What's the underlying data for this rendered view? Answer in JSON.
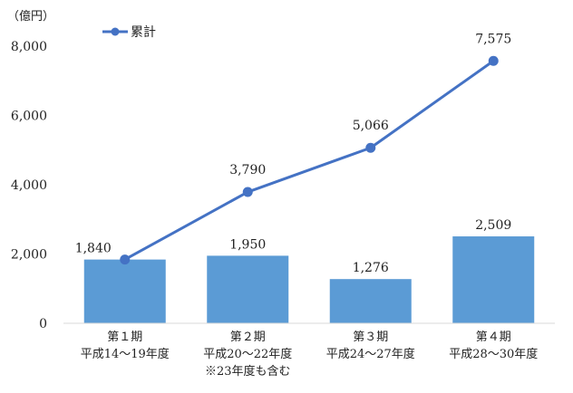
{
  "chart_data": {
    "type": "bar",
    "unit_label": "（億円）",
    "categories": [
      [
        "第１期",
        "平成14～19年度"
      ],
      [
        "第２期",
        "平成20～22年度",
        "※23年度も含む"
      ],
      [
        "第３期",
        "平成24～27年度"
      ],
      [
        "第４期",
        "平成28～30年度"
      ]
    ],
    "series": [
      {
        "type": "bar",
        "values": [
          1840,
          1950,
          1276,
          2509
        ],
        "labels": [
          "1,840",
          "1,950",
          "1,276",
          "2,509"
        ],
        "color": "#5b9bd5"
      },
      {
        "type": "line",
        "name": "累計",
        "values": [
          1840,
          3790,
          5066,
          7575
        ],
        "labels": [
          "1,840",
          "3,790",
          "5,066",
          "7,575"
        ],
        "color": "#4472c4"
      }
    ],
    "ylim": [
      0,
      8000
    ],
    "yticks": [
      0,
      2000,
      4000,
      6000,
      8000
    ],
    "ytick_labels": [
      "0",
      "2,000",
      "4,000",
      "6,000",
      "8,000"
    ],
    "grid": false,
    "legend_position": "top-left"
  }
}
